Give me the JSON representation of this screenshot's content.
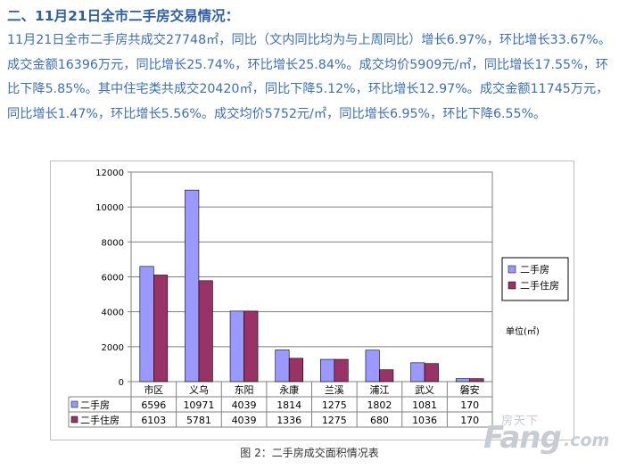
{
  "heading": "二、11月21日全市二手房交易情况：",
  "paragraph": "11月21日全市二手房共成交27748㎡，同比（文内同比均为与上周同比）增长6.97%，环比增长33.67%。成交金额16396万元，同比增长25.74%，环比增长25.84%。成交均价5909元/㎡，同比增长17.55%，环比下降5.85%。其中住宅类共成交20420㎡，同比下降5.12%，环比增长12.97%。成交金额11745万元，同比增长1.47%，环比增长5.56%。成交均价5752元/㎡，同比增长6.95%，环比下降6.55%。",
  "caption": "图 2：二手房成交面积情况表",
  "watermark": {
    "top": "房天下",
    "main": "Fang",
    "suffix": ".com"
  },
  "colors": {
    "series1": "#9999ff",
    "series2": "#993366",
    "text": "#3a6fb8"
  },
  "chart_data": {
    "type": "bar",
    "categories": [
      "市区",
      "义乌",
      "东阳",
      "永康",
      "兰溪",
      "浦江",
      "武义",
      "磐安"
    ],
    "series": [
      {
        "name": "二手房",
        "values": [
          6596,
          10971,
          4039,
          1814,
          1275,
          1802,
          1081,
          170
        ],
        "labels": [
          "6596",
          "10971",
          "4039",
          "1814",
          "1275",
          "1802",
          "1081",
          "170"
        ]
      },
      {
        "name": "二手住房",
        "values": [
          6103,
          5781,
          4039,
          1336,
          1275,
          680,
          1036,
          170
        ],
        "labels": [
          "6103",
          "5781",
          "4039",
          "1336",
          "1275",
          "680",
          "1036",
          "170"
        ]
      }
    ],
    "ylim": [
      0,
      12000
    ],
    "yticks": [
      0,
      2000,
      4000,
      6000,
      8000,
      10000,
      12000
    ],
    "ytick_labels": [
      "0",
      "2000",
      "4000",
      "6000",
      "8000",
      "10000",
      "12000"
    ],
    "grid": true,
    "legend_position": "right",
    "unit_label": "单位(㎡)",
    "data_table": true
  }
}
